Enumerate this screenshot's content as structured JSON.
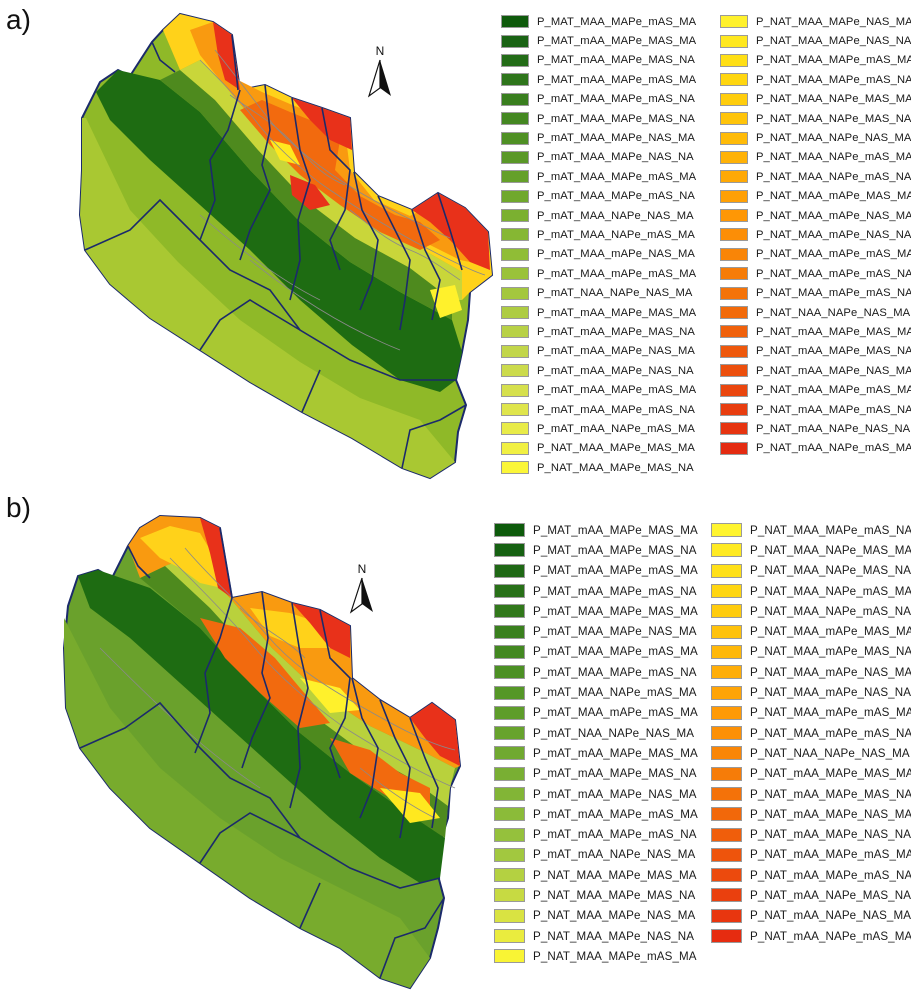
{
  "panels": [
    {
      "letter": "a)",
      "north_label": "N",
      "legend_left": [
        {
          "label": "P_MAT_MAA_MAPe_mAS_MA",
          "color": "#0f5a0c"
        },
        {
          "label": "P_MAT_mAA_MAPe_MAS_MA",
          "color": "#1a6314"
        },
        {
          "label": "P_MAT_mAA_MAPe_MAS_NA",
          "color": "#236c17"
        },
        {
          "label": "P_MAT_mAA_MAPe_mAS_MA",
          "color": "#2e751b"
        },
        {
          "label": "P_mAT_MAA_MAPe_mAS_NA",
          "color": "#397e1e"
        },
        {
          "label": "P_mAT_MAA_MAPe_MAS_NA",
          "color": "#448721"
        },
        {
          "label": "P_mAT_MAA_MAPe_NAS_MA",
          "color": "#4f9024"
        },
        {
          "label": "P_mAT_MAA_MAPe_NAS_NA",
          "color": "#5a9827"
        },
        {
          "label": "P_mAT_MAA_MAPe_mAS_MA",
          "color": "#65a02a"
        },
        {
          "label": "P_mAT_MAA_MAPe_mAS_NA",
          "color": "#70a82d"
        },
        {
          "label": "P_mAT_MAA_NAPe_NAS_MA",
          "color": "#7bb030"
        },
        {
          "label": "P_mAT_MAA_NAPe_mAS_MA",
          "color": "#86b733"
        },
        {
          "label": "P_mAT_MAA_mAPe_NAS_MA",
          "color": "#90bd36"
        },
        {
          "label": "P_mAT_MAA_mAPe_mAS_MA",
          "color": "#9ac23a"
        },
        {
          "label": "P_mAT_NAA_NAPe_NAS_MA",
          "color": "#a4c73e"
        },
        {
          "label": "P_mAT_mAA_MAPe_MAS_MA",
          "color": "#aecc42"
        },
        {
          "label": "P_mAT_mAA_MAPe_MAS_NA",
          "color": "#b8d146"
        },
        {
          "label": "P_mAT_mAA_MAPe_NAS_MA",
          "color": "#c2d64a"
        },
        {
          "label": "P_mAT_mAA_MAPe_NAS_NA",
          "color": "#ccdb4c"
        },
        {
          "label": "P_mAT_mAA_MAPe_mAS_MA",
          "color": "#d6e04d"
        },
        {
          "label": "P_mAT_mAA_MAPe_mAS_NA",
          "color": "#dfe54c"
        },
        {
          "label": "P_mAT_mAA_NAPe_mAS_MA",
          "color": "#e8eb48"
        },
        {
          "label": "P_NAT_MAA_MAPe_MAS_MA",
          "color": "#f1f042"
        },
        {
          "label": "P_NAT_MAA_MAPe_MAS_NA",
          "color": "#fbf638"
        }
      ],
      "legend_right": [
        {
          "label": "P_NAT_MAA_MAPe_NAS_MA",
          "color": "#fff12c"
        },
        {
          "label": "P_NAT_MAA_MAPe_NAS_NA",
          "color": "#ffe81f"
        },
        {
          "label": "P_NAT_MAA_MAPe_mAS_MA",
          "color": "#ffdf15"
        },
        {
          "label": "P_NAT_MAA_MAPe_mAS_NA",
          "color": "#ffd60f"
        },
        {
          "label": "P_NAT_MAA_NAPe_MAS_MA",
          "color": "#ffcd0c"
        },
        {
          "label": "P_NAT_MAA_NAPe_MAS_NA",
          "color": "#ffc40a"
        },
        {
          "label": "P_NAT_MAA_NAPe_NAS_MA",
          "color": "#ffbb08"
        },
        {
          "label": "P_NAT_MAA_NAPe_mAS_MA",
          "color": "#ffb207"
        },
        {
          "label": "P_NAT_MAA_NAPe_mAS_NA",
          "color": "#ffa906"
        },
        {
          "label": "P_NAT_MAA_mAPe_MAS_MA",
          "color": "#ffa005"
        },
        {
          "label": "P_NAT_MAA_mAPe_NAS_MA",
          "color": "#ff9705"
        },
        {
          "label": "P_NAT_MAA_mAPe_NAS_NA",
          "color": "#fc8e06"
        },
        {
          "label": "P_NAT_MAA_mAPe_mAS_MA",
          "color": "#f98507"
        },
        {
          "label": "P_NAT_MAA_mAPe_mAS_NA",
          "color": "#f67c08"
        },
        {
          "label": "P_NAT_MAA_mAPe_mAS_NA",
          "color": "#f47309"
        },
        {
          "label": "P_NAT_NAA_NAPe_NAS_MA",
          "color": "#f26a0a"
        },
        {
          "label": "P_NAT_mAA_MAPe_MAS_MA",
          "color": "#f0610b"
        },
        {
          "label": "P_NAT_mAA_MAPe_MAS_NA",
          "color": "#ee580c"
        },
        {
          "label": "P_NAT_mAA_MAPe_NAS_MA",
          "color": "#ec4f0d"
        },
        {
          "label": "P_NAT_mAA_MAPe_mAS_MA",
          "color": "#ea460e"
        },
        {
          "label": "P_NAT_mAA_MAPe_mAS_NA",
          "color": "#e83d0f"
        },
        {
          "label": "P_NAT_mAA_NAPe_NAS_NA",
          "color": "#e63410"
        },
        {
          "label": "P_NAT_mAA_NAPe_mAS_MA",
          "color": "#e42b11"
        }
      ]
    },
    {
      "letter": "b)",
      "north_label": "N",
      "legend_left": [
        {
          "label": "P_MAT_mAA_MAPe_MAS_MA",
          "color": "#0d5a0b"
        },
        {
          "label": "P_MAT_mAA_MAPe_MAS_NA",
          "color": "#166112"
        },
        {
          "label": "P_MAT_mAA_MAPe_mAS_MA",
          "color": "#1f6815"
        },
        {
          "label": "P_MAT_mAA_MAPe_mAS_NA",
          "color": "#287018"
        },
        {
          "label": "P_mAT_MAA_MAPe_MAS_MA",
          "color": "#31781b"
        },
        {
          "label": "P_mAT_MAA_MAPe_NAS_MA",
          "color": "#3a801e"
        },
        {
          "label": "P_mAT_MAA_MAPe_mAS_MA",
          "color": "#438821"
        },
        {
          "label": "P_mAT_MAA_MAPe_mAS_NA",
          "color": "#4c9024"
        },
        {
          "label": "P_mAT_MAA_NAPe_mAS_MA",
          "color": "#559727"
        },
        {
          "label": "P_mAT_MAA_mAPe_mAS_MA",
          "color": "#5e9d2a"
        },
        {
          "label": "P_mAT_NAA_NAPe_NAS_MA",
          "color": "#67a32d"
        },
        {
          "label": "P_mAT_mAA_MAPe_MAS_MA",
          "color": "#70a930"
        },
        {
          "label": "P_mAT_mAA_MAPe_MAS_NA",
          "color": "#79af33"
        },
        {
          "label": "P_mAT_mAA_MAPe_NAS_MA",
          "color": "#82b536"
        },
        {
          "label": "P_mAT_mAA_MAPe_mAS_MA",
          "color": "#8bbb39"
        },
        {
          "label": "P_mAT_mAA_MAPe_mAS_NA",
          "color": "#95c13c"
        },
        {
          "label": "P_mAT_mAA_NAPe_NAS_MA",
          "color": "#a2c83f"
        },
        {
          "label": "P_NAT_MAA_MAPe_MAS_MA",
          "color": "#b4d141"
        },
        {
          "label": "P_NAT_MAA_MAPe_MAS_NA",
          "color": "#c7da42"
        },
        {
          "label": "P_NAT_MAA_MAPe_NAS_MA",
          "color": "#d9e342"
        },
        {
          "label": "P_NAT_MAA_MAPe_NAS_NA",
          "color": "#eaec3e"
        },
        {
          "label": "P_NAT_MAA_MAPe_mAS_MA",
          "color": "#f9f434"
        }
      ],
      "legend_right": [
        {
          "label": "P_NAT_MAA_MAPe_mAS_NA",
          "color": "#fff42f"
        },
        {
          "label": "P_NAT_MAA_NAPe_MAS_MA",
          "color": "#ffea22"
        },
        {
          "label": "P_NAT_MAA_NAPe_MAS_NA",
          "color": "#ffe018"
        },
        {
          "label": "P_NAT_MAA_NAPe_mAS_MA",
          "color": "#ffd611"
        },
        {
          "label": "P_NAT_MAA_NAPe_mAS_NA",
          "color": "#ffcc0d"
        },
        {
          "label": "P_NAT_MAA_mAPe_MAS_MA",
          "color": "#ffc20b"
        },
        {
          "label": "P_NAT_MAA_mAPe_MAS_NA",
          "color": "#ffb809"
        },
        {
          "label": "P_NAT_MAA_mAPe_NAS_MA",
          "color": "#ffae08"
        },
        {
          "label": "P_NAT_MAA_mAPe_NAS_NA",
          "color": "#ffa407"
        },
        {
          "label": "P_NAT_MAA_mAPe_mAS_MA",
          "color": "#ff9a06"
        },
        {
          "label": "P_NAT_MAA_mAPe_mAS_NA",
          "color": "#fc9006"
        },
        {
          "label": "P_NAT_NAA_NAPe_NAS_MA",
          "color": "#f98607"
        },
        {
          "label": "P_NAT_mAA_MAPe_MAS_MA",
          "color": "#f67c08"
        },
        {
          "label": "P_NAT_mAA_MAPe_MAS_NA",
          "color": "#f47209"
        },
        {
          "label": "P_NAT_mAA_MAPe_NAS_MA",
          "color": "#f2680a"
        },
        {
          "label": "P_NAT_mAA_MAPe_NAS_NA",
          "color": "#f05e0b"
        },
        {
          "label": "P_NAT_mAA_MAPe_mAS_MA",
          "color": "#ee540c"
        },
        {
          "label": "P_NAT_mAA_MAPe_mAS_NA",
          "color": "#ec4a0d"
        },
        {
          "label": "P_NAT_mAA_NAPe_MAS_NA",
          "color": "#ea400e"
        },
        {
          "label": "P_NAT_mAA_NAPe_NAS_MA",
          "color": "#e8360f"
        },
        {
          "label": "P_NAT_mAA_NAPe_mAS_MA",
          "color": "#e62c10"
        }
      ]
    }
  ],
  "map_zone_colors": {
    "coast": "#8fb928",
    "coast_light": "#a9c832",
    "lowland_dark": "#1e6c12",
    "lowland_mid": "#4e8a1e",
    "transition": "#c9d63a",
    "hill_yellow": "#ffd21a",
    "hill_orange": "#f99a10",
    "hill_darkorange": "#f26a0e",
    "mountain_red": "#e8311a",
    "border": "#1b2a6b",
    "contour": "#8a8a8a"
  }
}
